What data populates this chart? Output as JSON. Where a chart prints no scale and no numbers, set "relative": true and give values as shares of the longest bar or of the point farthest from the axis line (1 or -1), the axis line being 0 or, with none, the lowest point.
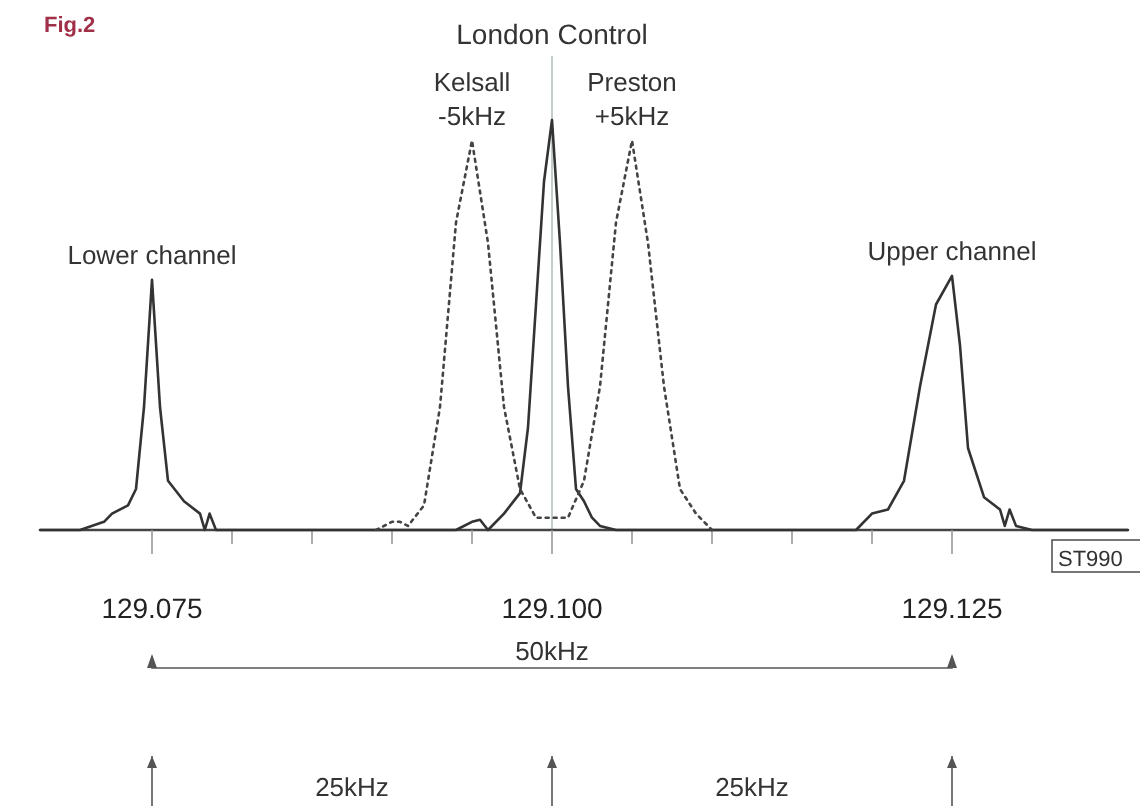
{
  "chart_data": {
    "type": "line",
    "relative": true,
    "xlim": [
      129.068,
      129.136
    ],
    "xticks": [
      {
        "value": 129.075,
        "label": "129.075"
      },
      {
        "value": 129.08,
        "label": null
      },
      {
        "value": 129.085,
        "label": null
      },
      {
        "value": 129.09,
        "label": null
      },
      {
        "value": 129.095,
        "label": null
      },
      {
        "value": 129.1,
        "label": "129.100"
      },
      {
        "value": 129.105,
        "label": null
      },
      {
        "value": 129.11,
        "label": null
      },
      {
        "value": 129.115,
        "label": null
      },
      {
        "value": 129.12,
        "label": null
      },
      {
        "value": 129.125,
        "label": "129.125"
      }
    ],
    "series": [
      {
        "color": "#333333",
        "line_style": "solid",
        "x": [
          129.068,
          129.0705,
          129.072,
          129.0725,
          129.0735,
          129.074,
          129.0745,
          129.075,
          129.0755,
          129.076,
          129.077,
          129.078,
          129.0783,
          129.0786,
          129.079,
          129.08,
          129.094,
          129.095,
          129.0955,
          129.096,
          129.097,
          129.098,
          129.0985,
          129.099,
          129.0995,
          129.1,
          129.1005,
          129.101,
          129.1015,
          129.102,
          129.1025,
          129.103,
          129.104,
          129.119,
          129.12,
          129.121,
          129.122,
          129.123,
          129.124,
          129.125,
          129.1255,
          129.126,
          129.127,
          129.128,
          129.1283,
          129.1286,
          129.129,
          129.13,
          129.136
        ],
        "values": [
          0,
          0,
          0.02,
          0.04,
          0.06,
          0.1,
          0.3,
          0.61,
          0.3,
          0.12,
          0.07,
          0.04,
          0,
          0.04,
          0,
          0,
          0,
          0.02,
          0.025,
          0,
          0.04,
          0.09,
          0.25,
          0.55,
          0.85,
          1,
          0.7,
          0.35,
          0.1,
          0.07,
          0.03,
          0.01,
          0,
          0,
          0.04,
          0.05,
          0.12,
          0.35,
          0.55,
          0.62,
          0.45,
          0.2,
          0.08,
          0.05,
          0.01,
          0.05,
          0.01,
          0,
          0
        ]
      },
      {
        "color": "#444444",
        "line_style": "dotted",
        "x": [
          129.089,
          129.09,
          129.0905,
          129.091,
          129.092,
          129.093,
          129.094,
          129.095,
          129.096,
          129.097,
          129.098,
          129.099,
          129.101,
          129.102,
          129.103,
          129.104,
          129.105,
          129.106,
          129.107,
          129.108,
          129.109,
          129.11
        ],
        "values": [
          0,
          0.02,
          0.02,
          0.01,
          0.06,
          0.3,
          0.75,
          0.95,
          0.7,
          0.3,
          0.1,
          0.03,
          0.03,
          0.12,
          0.35,
          0.75,
          0.95,
          0.7,
          0.35,
          0.1,
          0.04,
          0
        ]
      }
    ],
    "ref_lines": [
      {
        "axis": "x",
        "value": 129.1,
        "label": "London Control",
        "color": "#c4cccc"
      }
    ],
    "annotations": [
      {
        "text": "Lower channel",
        "x": 129.075,
        "y": 0.61
      },
      {
        "text": "Kelsall",
        "x": 129.095,
        "y": 0.95
      },
      {
        "text": "-5kHz",
        "x": 129.095,
        "y": 0.95
      },
      {
        "text": "Preston",
        "x": 129.105,
        "y": 0.95
      },
      {
        "text": "+5kHz",
        "x": 129.105,
        "y": 0.95
      },
      {
        "text": "Upper channel",
        "x": 129.125,
        "y": 0.62
      },
      "Fig.2",
      "ST990",
      "50kHz",
      "25kHz",
      "25kHz"
    ]
  }
}
